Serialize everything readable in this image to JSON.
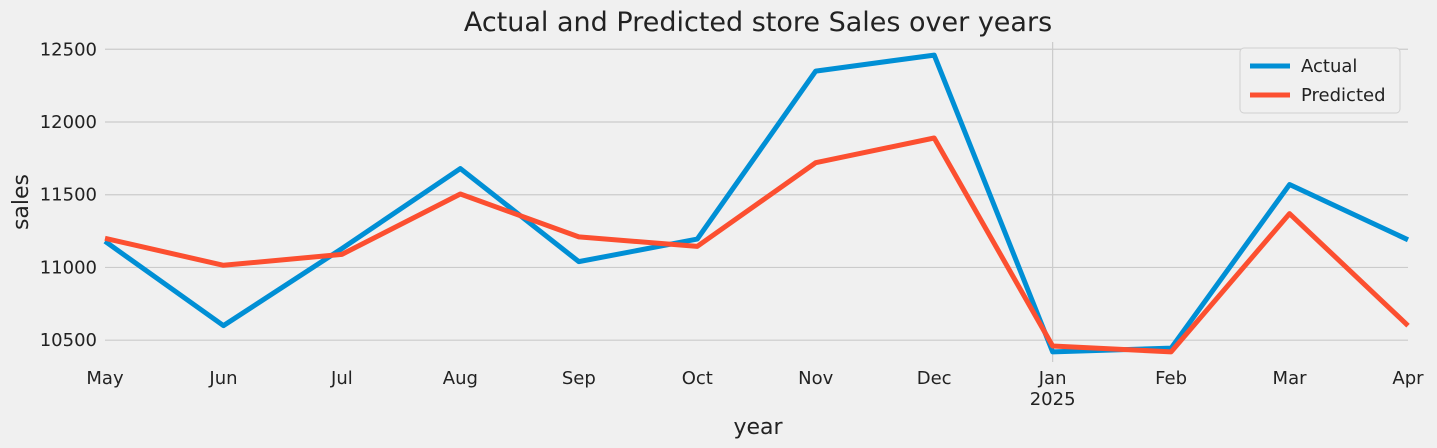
{
  "chart_data": {
    "type": "line",
    "title": "Actual and Predicted store Sales over years",
    "xlabel": "year",
    "ylabel": "sales",
    "categories": [
      "May",
      "Jun",
      "Jul",
      "Aug",
      "Sep",
      "Oct",
      "Nov",
      "Dec",
      "Jan",
      "Feb",
      "Mar",
      "Apr"
    ],
    "year_label": {
      "category": "Jan",
      "text": "2025"
    },
    "yticks": [
      10500,
      11000,
      11500,
      12000,
      12500
    ],
    "ylim": [
      10350,
      12550
    ],
    "grid": true,
    "legend": "top-right",
    "series": [
      {
        "name": "Actual",
        "color": "#008fd5",
        "values": [
          11180,
          10600,
          11130,
          11680,
          11040,
          11195,
          12350,
          12460,
          10420,
          10445,
          11570,
          11190
        ]
      },
      {
        "name": "Predicted",
        "color": "#fc4f30",
        "values": [
          11200,
          11015,
          11090,
          11505,
          11210,
          11145,
          11720,
          11890,
          10460,
          10420,
          11370,
          10600
        ]
      }
    ]
  }
}
